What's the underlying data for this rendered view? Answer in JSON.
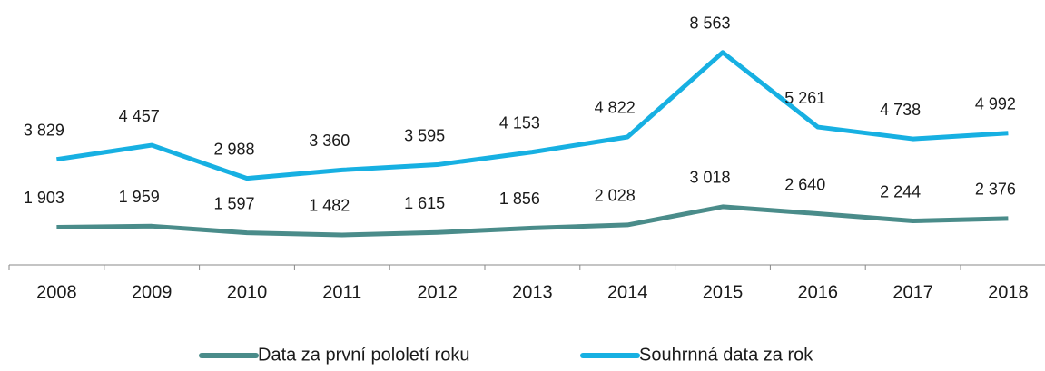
{
  "chart_data": {
    "type": "line",
    "categories": [
      "2008",
      "2009",
      "2010",
      "2011",
      "2012",
      "2013",
      "2014",
      "2015",
      "2016",
      "2017",
      "2018"
    ],
    "series": [
      {
        "name": "Data za první pololetí roku",
        "color": "#4a8c8a",
        "values": [
          1903,
          1959,
          1597,
          1482,
          1615,
          1856,
          2028,
          3018,
          2640,
          2244,
          2376
        ],
        "value_labels": [
          "1 903",
          "1 959",
          "1 597",
          "1 482",
          "1 615",
          "1 856",
          "2 028",
          "3 018",
          "2 640",
          "2 244",
          "2 376"
        ]
      },
      {
        "name": "Souhrnná data za rok",
        "color": "#17b0e2",
        "axis": "y2",
        "values": [
          3829,
          4457,
          2988,
          3360,
          3595,
          4153,
          4822,
          8563,
          5261,
          4738,
          4992
        ],
        "value_labels": [
          "3 829",
          "4 457",
          "2 988",
          "3 360",
          "3 595",
          "4 153",
          "4 822",
          "8 563",
          "5 261",
          "4 738",
          "4 992"
        ]
      }
    ],
    "ylim": [
      -350,
      13200
    ],
    "y2lim": [
      -1000,
      10000
    ],
    "legend": "bottom"
  }
}
